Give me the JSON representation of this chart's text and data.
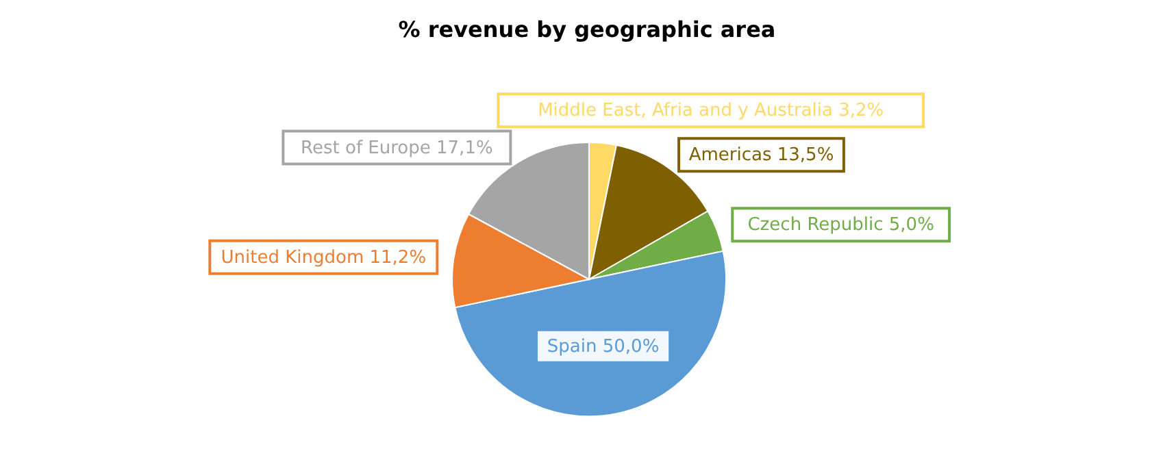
{
  "chart_data": {
    "type": "pie",
    "title": "% revenue by geographic area",
    "categories": [
      "Middle East, Afria and y Australia",
      "Americas",
      "Czech Republic",
      "Spain",
      "United Kingdom",
      "Rest of Europe"
    ],
    "values": [
      3.2,
      13.5,
      5.0,
      50.0,
      11.2,
      17.1
    ],
    "colors": [
      "#ffd966",
      "#7f6000",
      "#70ad47",
      "#5b9bd5",
      "#ed7d31",
      "#a5a5a5"
    ],
    "value_labels": [
      "3,2%",
      "13,5%",
      "5,0%",
      "50,0%",
      "11,2%",
      "17,1%"
    ]
  }
}
